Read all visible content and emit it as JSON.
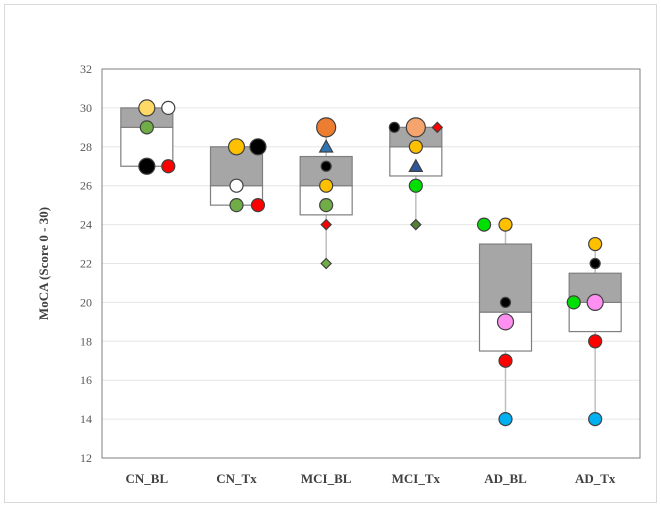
{
  "chart_data": {
    "type": "box",
    "title": "",
    "xlabel": "",
    "ylabel": "MoCA  (Score 0 - 30)",
    "ylim": [
      12,
      32
    ],
    "yticks": [
      12,
      14,
      16,
      18,
      20,
      22,
      24,
      26,
      28,
      30,
      32
    ],
    "grid": true,
    "categories": [
      "CN_BL",
      "CN_Tx",
      "MCI_BL",
      "MCI_Tx",
      "AD_BL",
      "AD_Tx"
    ],
    "boxes": [
      {
        "min": 27,
        "q1": 27,
        "median": 29,
        "q3": 30,
        "max": 30
      },
      {
        "min": 25,
        "q1": 25,
        "median": 26,
        "q3": 28,
        "max": 28
      },
      {
        "min": 22,
        "q1": 24.5,
        "median": 26,
        "q3": 27.5,
        "max": 29
      },
      {
        "min": 24,
        "q1": 26.5,
        "median": 28,
        "q3": 29,
        "max": 29
      },
      {
        "min": 14,
        "q1": 17.5,
        "median": 19.5,
        "q3": 23,
        "max": 24
      },
      {
        "min": 14,
        "q1": 18.5,
        "median": 20,
        "q3": 21.5,
        "max": 23
      }
    ],
    "colors": {
      "box_upper": "#a6a6a6",
      "box_lower": "#ffffff",
      "whisker": "#bfbfbf"
    },
    "points": [
      [
        {
          "y": 30,
          "color": "#ffd966",
          "shape": "circle",
          "size": "large",
          "slot": "center"
        },
        {
          "y": 30,
          "color": "#ffffff",
          "shape": "circle",
          "size": "medium",
          "slot": "right"
        },
        {
          "y": 29,
          "color": "#70ad47",
          "shape": "circle",
          "size": "medium",
          "slot": "center"
        },
        {
          "y": 27,
          "color": "#000000",
          "shape": "circle",
          "size": "large",
          "slot": "center"
        },
        {
          "y": 27,
          "color": "#ff0000",
          "shape": "circle",
          "size": "medium",
          "slot": "right"
        }
      ],
      [
        {
          "y": 28,
          "color": "#ffc000",
          "shape": "circle",
          "size": "large",
          "slot": "center"
        },
        {
          "y": 28,
          "color": "#000000",
          "shape": "circle",
          "size": "large",
          "slot": "right"
        },
        {
          "y": 26,
          "color": "#ffffff",
          "shape": "circle",
          "size": "medium",
          "slot": "center"
        },
        {
          "y": 25,
          "color": "#70ad47",
          "shape": "circle",
          "size": "medium",
          "slot": "center"
        },
        {
          "y": 25,
          "color": "#ff0000",
          "shape": "circle",
          "size": "medium",
          "slot": "right"
        }
      ],
      [
        {
          "y": 29,
          "color": "#ed7d31",
          "shape": "circle",
          "size": "xlarge",
          "slot": "center"
        },
        {
          "y": 28,
          "color": "#2e75b6",
          "shape": "triangle",
          "size": "medium",
          "slot": "center"
        },
        {
          "y": 27,
          "color": "#000000",
          "shape": "circle",
          "size": "small",
          "slot": "center"
        },
        {
          "y": 26,
          "color": "#ffc000",
          "shape": "circle",
          "size": "medium",
          "slot": "center"
        },
        {
          "y": 25,
          "color": "#70ad47",
          "shape": "circle",
          "size": "medium",
          "slot": "center"
        },
        {
          "y": 24,
          "color": "#ff0000",
          "shape": "diamond",
          "size": "small",
          "slot": "center"
        },
        {
          "y": 22,
          "color": "#70ad47",
          "shape": "diamond",
          "size": "small",
          "slot": "center"
        }
      ],
      [
        {
          "y": 29,
          "color": "#000000",
          "shape": "circle",
          "size": "small",
          "slot": "left"
        },
        {
          "y": 29,
          "color": "#f4a46c",
          "shape": "circle",
          "size": "xlarge",
          "slot": "center"
        },
        {
          "y": 29,
          "color": "#ff0000",
          "shape": "diamond",
          "size": "small",
          "slot": "right"
        },
        {
          "y": 28,
          "color": "#ffc000",
          "shape": "circle",
          "size": "medium",
          "slot": "center"
        },
        {
          "y": 27,
          "color": "#2e5597",
          "shape": "triangle",
          "size": "medium",
          "slot": "center"
        },
        {
          "y": 26,
          "color": "#00e000",
          "shape": "circle",
          "size": "medium",
          "slot": "center"
        },
        {
          "y": 24,
          "color": "#548235",
          "shape": "diamond",
          "size": "small",
          "slot": "center"
        }
      ],
      [
        {
          "y": 24,
          "color": "#00e000",
          "shape": "circle",
          "size": "medium",
          "slot": "left"
        },
        {
          "y": 24,
          "color": "#ffc000",
          "shape": "circle",
          "size": "medium",
          "slot": "center"
        },
        {
          "y": 20,
          "color": "#000000",
          "shape": "circle",
          "size": "small",
          "slot": "center"
        },
        {
          "y": 19,
          "color": "#ff8ff0",
          "shape": "circle",
          "size": "large",
          "slot": "center"
        },
        {
          "y": 17,
          "color": "#ff0000",
          "shape": "circle",
          "size": "medium",
          "slot": "center"
        },
        {
          "y": 14,
          "color": "#00b0f0",
          "shape": "circle",
          "size": "medium",
          "slot": "center"
        }
      ],
      [
        {
          "y": 23,
          "color": "#ffc000",
          "shape": "circle",
          "size": "medium",
          "slot": "center"
        },
        {
          "y": 22,
          "color": "#000000",
          "shape": "circle",
          "size": "small",
          "slot": "center"
        },
        {
          "y": 20,
          "color": "#00e000",
          "shape": "circle",
          "size": "medium",
          "slot": "left"
        },
        {
          "y": 20,
          "color": "#ff8ff0",
          "shape": "circle",
          "size": "large",
          "slot": "center"
        },
        {
          "y": 18,
          "color": "#ff0000",
          "shape": "circle",
          "size": "medium",
          "slot": "center"
        },
        {
          "y": 14,
          "color": "#00b0f0",
          "shape": "circle",
          "size": "medium",
          "slot": "center"
        }
      ]
    ]
  }
}
